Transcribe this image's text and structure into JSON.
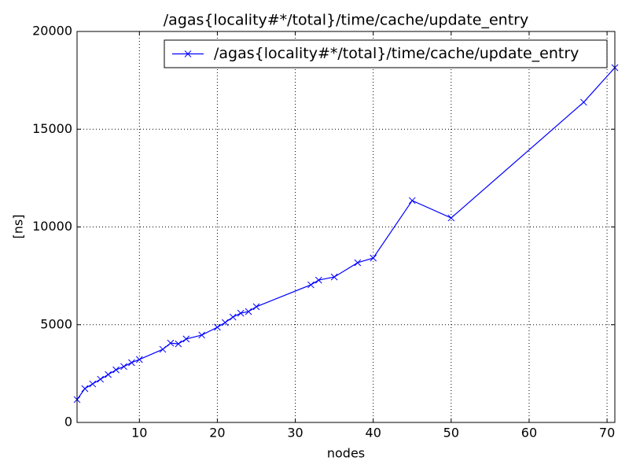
{
  "chart_data": {
    "type": "line",
    "title": "/agas{locality#*/total}/time/cache/update_entry",
    "x_label": "nodes",
    "y_label": "[ns]",
    "x": [
      2,
      3,
      4,
      5,
      6,
      7,
      8,
      9,
      10,
      13,
      14,
      15,
      16,
      18,
      20,
      21,
      22,
      23,
      24,
      25,
      32,
      33,
      35,
      38,
      40,
      45,
      50,
      67,
      71
    ],
    "series": [
      {
        "name": "/agas{locality#*/total}/time/cache/update_entry",
        "color": "#0000ff",
        "marker": "x",
        "values": [
          1170,
          1730,
          1970,
          2210,
          2450,
          2690,
          2860,
          3060,
          3220,
          3740,
          4060,
          4020,
          4270,
          4470,
          4870,
          5110,
          5390,
          5590,
          5670,
          5920,
          7040,
          7280,
          7440,
          8170,
          8410,
          11350,
          10460,
          16380,
          18150
        ]
      }
    ],
    "xlim": [
      2,
      71
    ],
    "xticks": [
      10,
      20,
      30,
      40,
      50,
      60,
      70
    ],
    "ylim": [
      0,
      20000
    ],
    "yticks": [
      0,
      5000,
      10000,
      15000,
      20000
    ],
    "grid": true,
    "legend": "upper right"
  }
}
